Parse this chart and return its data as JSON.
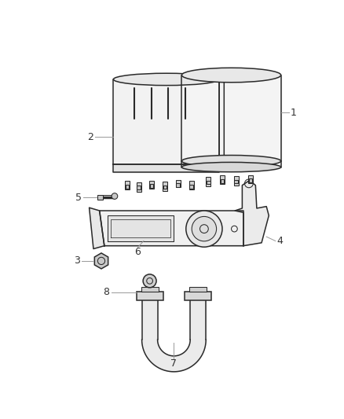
{
  "bg_color": "#ffffff",
  "line_color": "#2a2a2a",
  "label_color": "#333333",
  "leader_color": "#999999",
  "fig_w": 4.38,
  "fig_h": 5.33,
  "dpi": 100
}
